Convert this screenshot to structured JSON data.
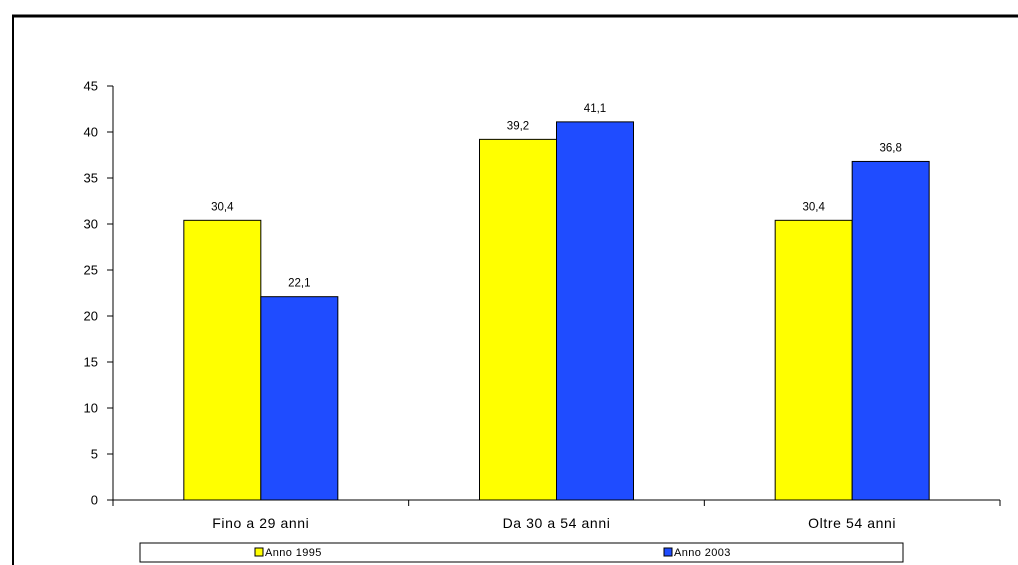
{
  "chart_data": {
    "type": "bar",
    "title": "",
    "xlabel": "",
    "ylabel": "",
    "categories": [
      "Fino a 29 anni",
      "Da 30 a 54 anni",
      "Oltre 54 anni"
    ],
    "series": [
      {
        "name": "Anno 1995",
        "values": [
          30.4,
          39.2,
          30.4
        ],
        "labels": [
          "30,4",
          "39,2",
          "30,4"
        ],
        "color": "#ffff00"
      },
      {
        "name": "Anno 2003",
        "values": [
          22.1,
          41.1,
          36.8
        ],
        "labels": [
          "22,1",
          "41,1",
          "36,8"
        ],
        "color": "#1f4cff"
      }
    ],
    "ylim": [
      0,
      45
    ],
    "yticks": [
      0,
      5,
      10,
      15,
      20,
      25,
      30,
      35,
      40,
      45
    ],
    "grid": false,
    "legend_position": "bottom"
  }
}
